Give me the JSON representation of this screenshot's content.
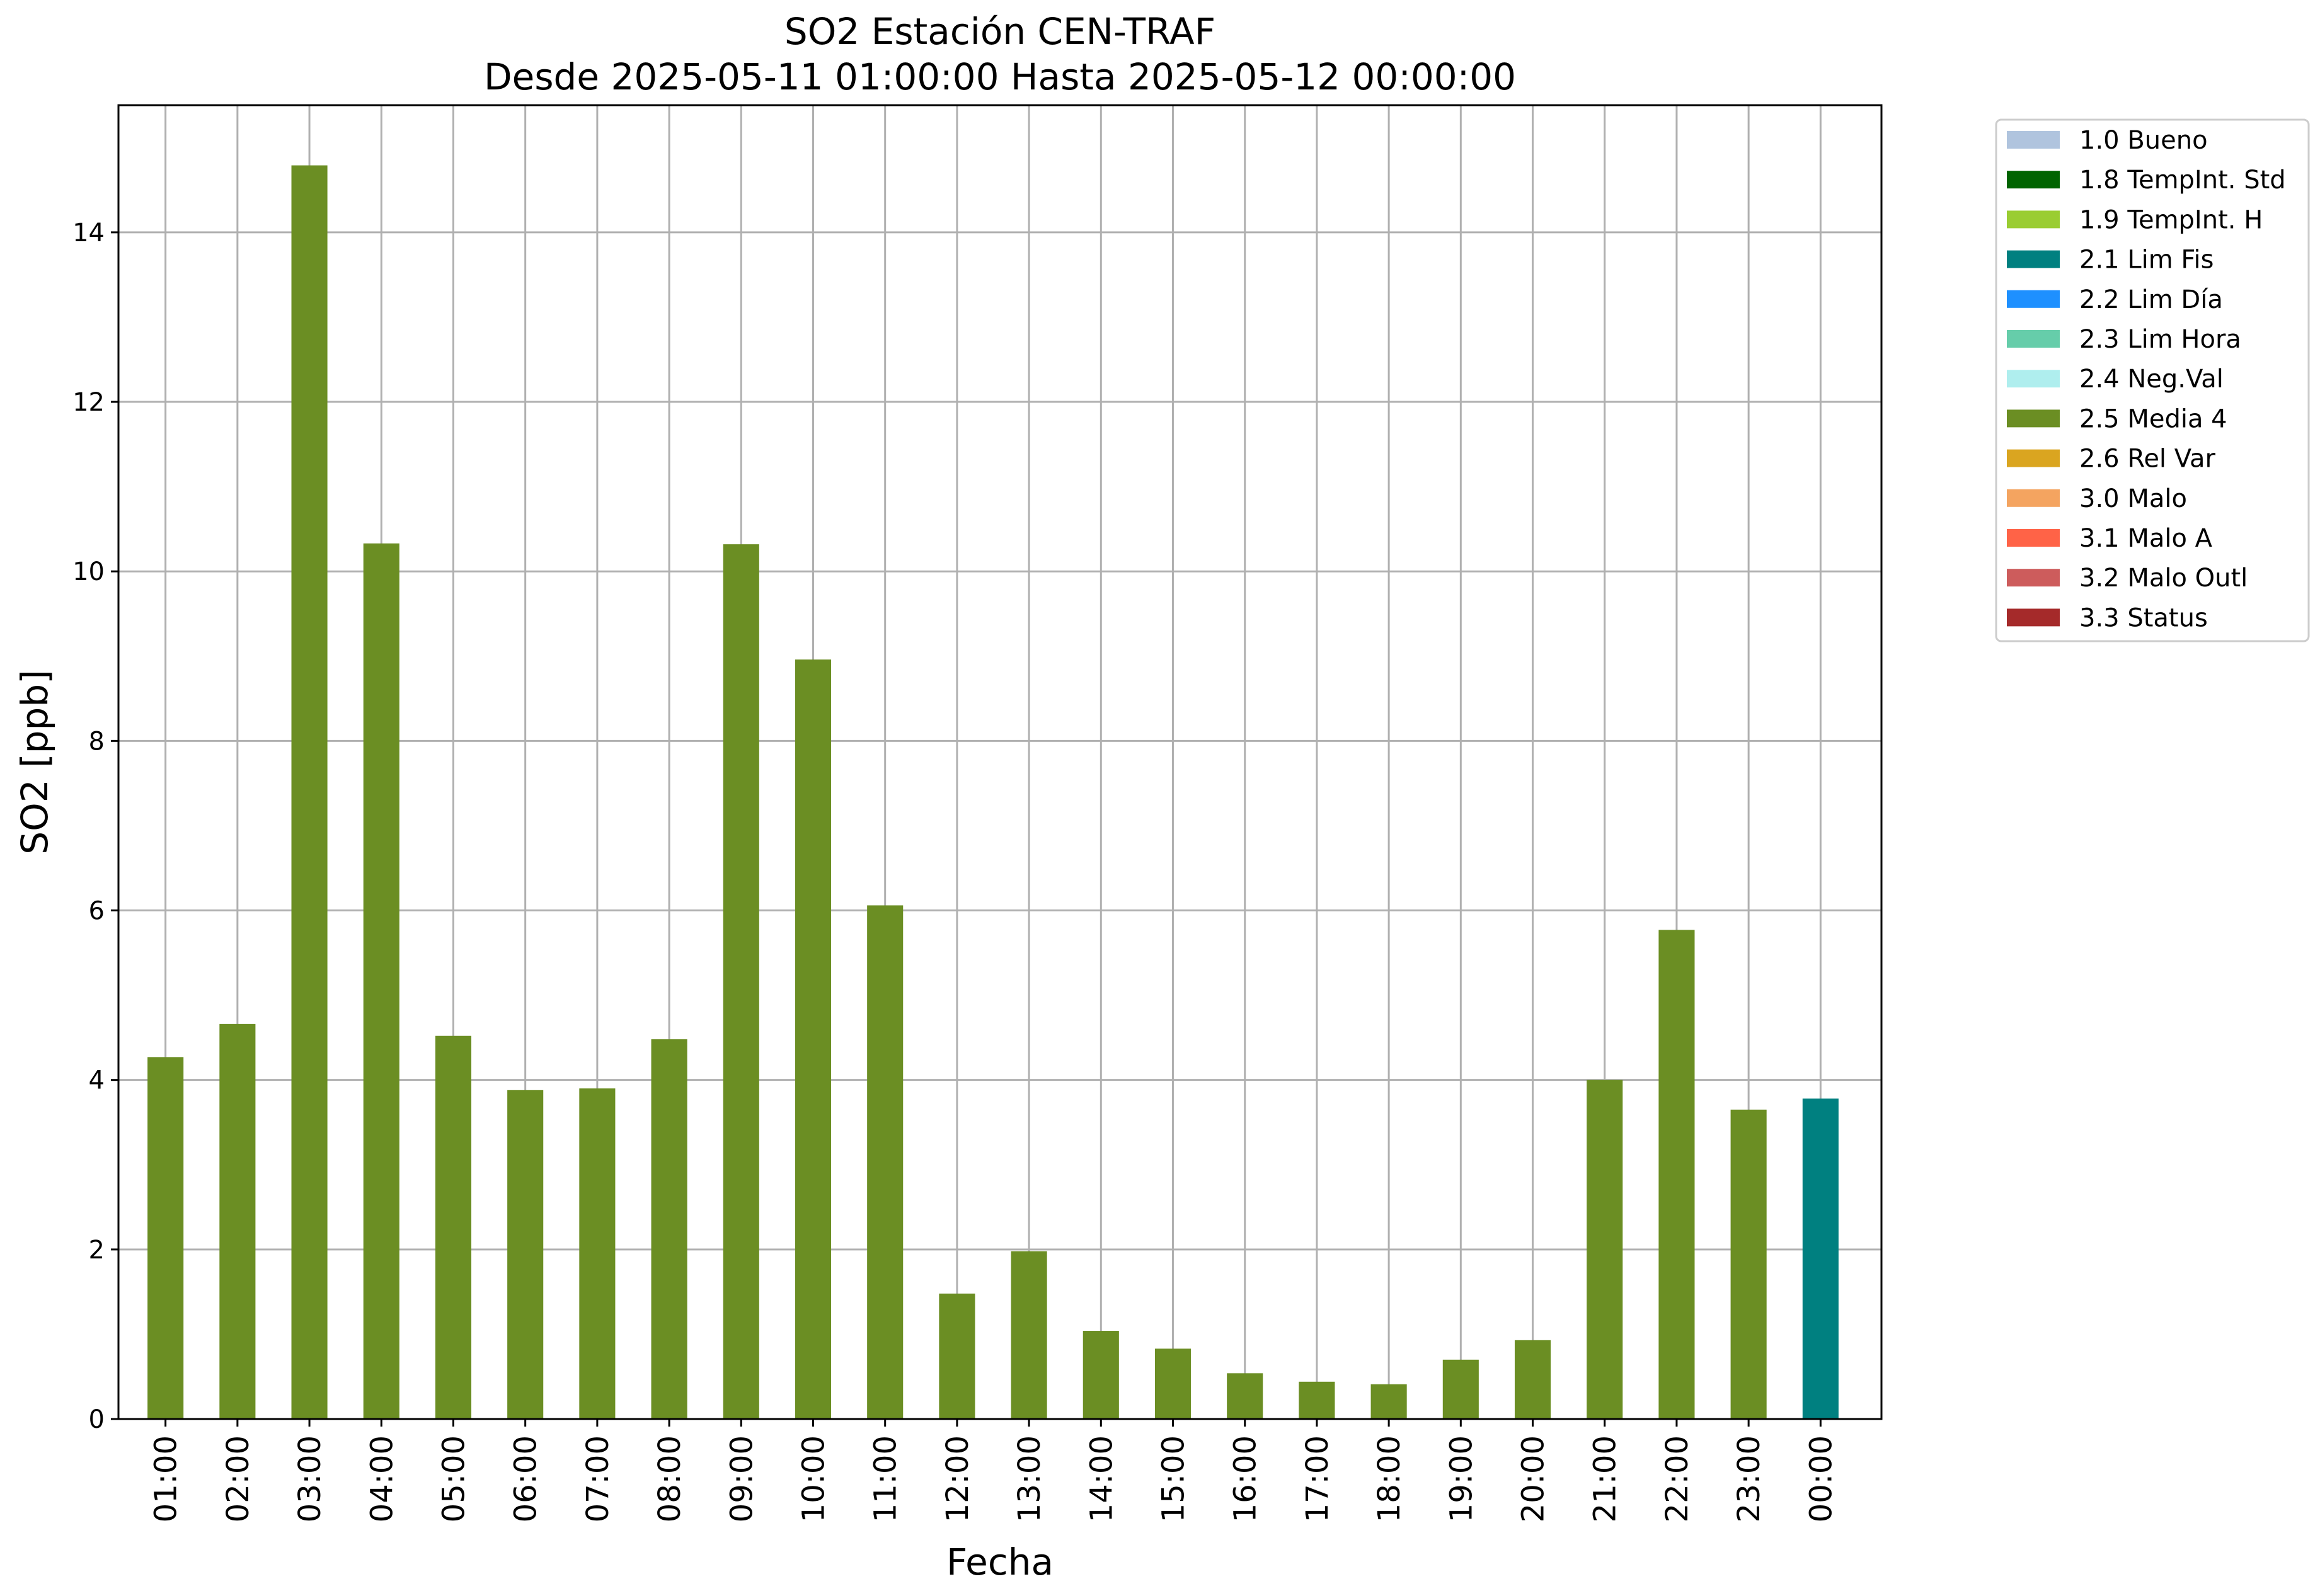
{
  "chart_data": {
    "type": "bar",
    "title": "SO2 Estación CEN-TRAF",
    "subtitle": "Desde 2025-05-11 01:00:00 Hasta 2025-05-12 00:00:00",
    "xlabel": "Fecha",
    "ylabel": "SO2 [ppb]",
    "ylim": [
      0,
      15.5
    ],
    "yticks": [
      0,
      2,
      4,
      6,
      8,
      10,
      12,
      14
    ],
    "grid": true,
    "legend_position": "outside-top-right",
    "categories": [
      "01:00",
      "02:00",
      "03:00",
      "04:00",
      "05:00",
      "06:00",
      "07:00",
      "08:00",
      "09:00",
      "10:00",
      "11:00",
      "12:00",
      "13:00",
      "14:00",
      "15:00",
      "16:00",
      "17:00",
      "18:00",
      "19:00",
      "20:00",
      "21:00",
      "22:00",
      "23:00",
      "00:00"
    ],
    "values": [
      4.27,
      4.66,
      14.79,
      10.33,
      4.52,
      3.88,
      3.9,
      4.48,
      10.32,
      8.96,
      6.06,
      1.48,
      1.98,
      1.04,
      0.83,
      0.54,
      0.44,
      0.41,
      0.7,
      0.93,
      4.0,
      5.77,
      3.65,
      3.78
    ],
    "flags": [
      "2.5",
      "2.5",
      "2.5",
      "2.5",
      "2.5",
      "2.5",
      "2.5",
      "2.5",
      "2.5",
      "2.5",
      "2.5",
      "2.5",
      "2.5",
      "2.5",
      "2.5",
      "2.5",
      "2.5",
      "2.5",
      "2.5",
      "2.5",
      "2.5",
      "2.5",
      "2.5",
      "2.1"
    ],
    "legend": [
      {
        "code": "1.0",
        "label": "1.0 Bueno",
        "color": "#b0c4de"
      },
      {
        "code": "1.8",
        "label": "1.8 TempInt. Std",
        "color": "#006400"
      },
      {
        "code": "1.9",
        "label": "1.9 TempInt. H",
        "color": "#9acd32"
      },
      {
        "code": "2.1",
        "label": "2.1 Lim Fis",
        "color": "#008080"
      },
      {
        "code": "2.2",
        "label": "2.2 Lim Día",
        "color": "#1e90ff"
      },
      {
        "code": "2.3",
        "label": "2.3 Lim Hora",
        "color": "#66cdaa"
      },
      {
        "code": "2.4",
        "label": "2.4 Neg.Val",
        "color": "#afeeee"
      },
      {
        "code": "2.5",
        "label": "2.5 Media 4",
        "color": "#6b8e23"
      },
      {
        "code": "2.6",
        "label": "2.6 Rel Var",
        "color": "#daa520"
      },
      {
        "code": "3.0",
        "label": "3.0 Malo",
        "color": "#f4a460"
      },
      {
        "code": "3.1",
        "label": "3.1 Malo A",
        "color": "#ff6347"
      },
      {
        "code": "3.2",
        "label": "3.2 Malo Outl",
        "color": "#cd5c5c"
      },
      {
        "code": "3.3",
        "label": "3.3 Status",
        "color": "#a52a2a"
      }
    ]
  }
}
